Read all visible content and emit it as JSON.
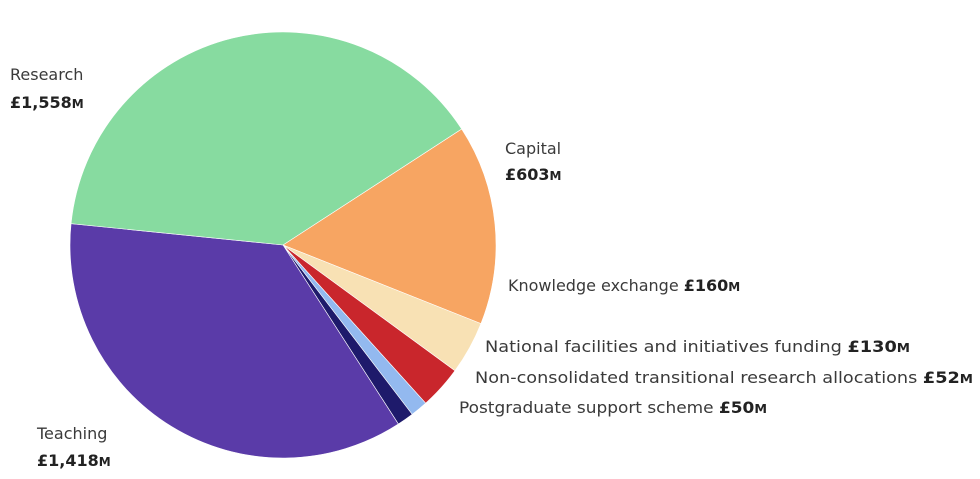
{
  "chart_data": {
    "type": "pie",
    "unit_currency": "£",
    "unit_suffix": "M",
    "slices": [
      {
        "label": "Capital",
        "value": 603,
        "value_text": "£603",
        "color": "#f7a562"
      },
      {
        "label": "Knowledge exchange",
        "value": 160,
        "value_text": "£160",
        "color": "#f8e1b4"
      },
      {
        "label": "National facilities and initiatives funding",
        "value": 130,
        "value_text": "£130",
        "color": "#c9262c"
      },
      {
        "label": "Non-consolidated transitional research allocations",
        "value": 52,
        "value_text": "£52",
        "color": "#93b9ef"
      },
      {
        "label": "Postgraduate support scheme",
        "value": 50,
        "value_text": "£50",
        "color": "#1e1a6b"
      },
      {
        "label": "Teaching",
        "value": 1418,
        "value_text": "£1,418",
        "color": "#5a3ba8"
      },
      {
        "label": "Research",
        "value": 1558,
        "value_text": "£1,558",
        "color": "#87dba0"
      }
    ]
  }
}
